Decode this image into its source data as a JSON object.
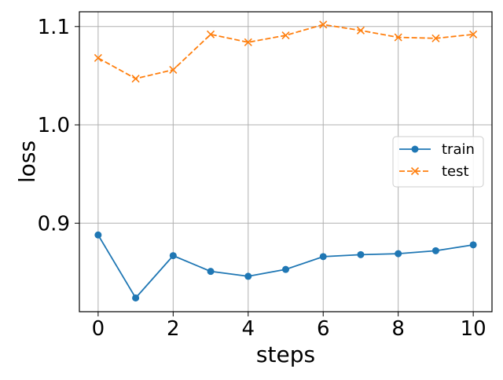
{
  "chart_data": {
    "type": "line",
    "title": "",
    "xlabel": "steps",
    "ylabel": "loss",
    "x": [
      0,
      1,
      2,
      3,
      4,
      5,
      6,
      7,
      8,
      9,
      10
    ],
    "xlim": [
      -0.5,
      10.5
    ],
    "ylim": [
      0.81,
      1.115
    ],
    "xticks": [
      0,
      2,
      4,
      6,
      8,
      10
    ],
    "yticks": [
      0.9,
      1.0,
      1.1
    ],
    "xtick_labels": [
      "0",
      "2",
      "4",
      "6",
      "8",
      "10"
    ],
    "ytick_labels": [
      "0.9",
      "1.0",
      "1.1"
    ],
    "grid": true,
    "legend": {
      "position": "center-right"
    },
    "series": [
      {
        "name": "train",
        "values": [
          0.888,
          0.824,
          0.867,
          0.851,
          0.846,
          0.853,
          0.866,
          0.868,
          0.869,
          0.872,
          0.878
        ],
        "color": "#1f77b4",
        "line_style": "solid",
        "marker": "circle"
      },
      {
        "name": "test",
        "values": [
          1.068,
          1.047,
          1.056,
          1.092,
          1.084,
          1.091,
          1.102,
          1.096,
          1.089,
          1.088,
          1.092
        ],
        "color": "#ff7f0e",
        "line_style": "dashed",
        "marker": "x"
      }
    ]
  }
}
